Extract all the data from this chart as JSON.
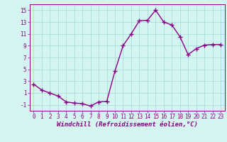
{
  "x": [
    0,
    1,
    2,
    3,
    4,
    5,
    6,
    7,
    8,
    9,
    10,
    11,
    12,
    13,
    14,
    15,
    16,
    17,
    18,
    19,
    20,
    21,
    22,
    23
  ],
  "y": [
    2.5,
    1.5,
    1.0,
    0.5,
    -0.5,
    -0.7,
    -0.8,
    -1.2,
    -0.5,
    -0.4,
    4.7,
    9.0,
    11.0,
    13.2,
    13.3,
    15.0,
    13.0,
    12.5,
    10.5,
    7.5,
    8.5,
    9.1,
    9.2,
    9.2
  ],
  "line_color": "#880088",
  "marker": "+",
  "marker_size": 4,
  "bg_color": "#D5F5F0",
  "grid_color": "#AADDDD",
  "xlabel": "Windchill (Refroidissement éolien,°C)",
  "xlabel_fontsize": 6.5,
  "xlim": [
    -0.5,
    23.5
  ],
  "ylim": [
    -2,
    16
  ],
  "yticks": [
    -1,
    1,
    3,
    5,
    7,
    9,
    11,
    13,
    15
  ],
  "xtick_labels": [
    "0",
    "1",
    "2",
    "3",
    "4",
    "5",
    "6",
    "7",
    "8",
    "9",
    "10",
    "11",
    "12",
    "13",
    "14",
    "15",
    "16",
    "17",
    "18",
    "19",
    "20",
    "21",
    "22",
    "23"
  ],
  "tick_fontsize": 5.5,
  "line_width": 1.0
}
